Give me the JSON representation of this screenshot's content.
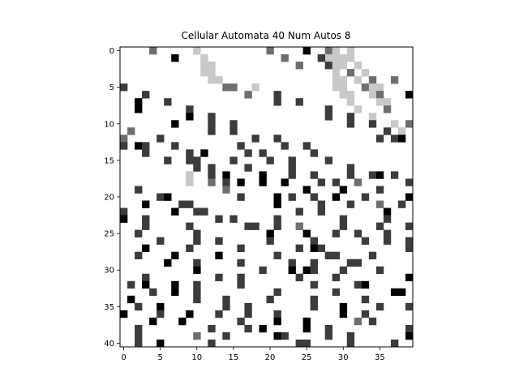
{
  "chart_data": {
    "type": "heatmap",
    "title": "Cellular Automata 40 Num Autos 8",
    "xlabel": "",
    "ylabel": "",
    "xlim": [
      -0.5,
      39.5
    ],
    "ylim": [
      40.5,
      -0.5
    ],
    "x_ticks": [
      0,
      5,
      10,
      15,
      20,
      25,
      30,
      35
    ],
    "y_ticks": [
      0,
      5,
      10,
      15,
      20,
      25,
      30,
      35,
      40
    ],
    "grid": false,
    "colormap": "gray_r",
    "colors": {
      "0": "#ffffff",
      "1": "#c8c8c8",
      "2": "#6e6e6e",
      "3": "#3c3c3c",
      "4": "#000000"
    },
    "rows": 41,
    "cols": 40,
    "cells": [
      [
        0,
        4,
        2
      ],
      [
        0,
        10,
        1
      ],
      [
        0,
        20,
        2
      ],
      [
        0,
        25,
        4
      ],
      [
        0,
        28,
        2
      ],
      [
        0,
        29,
        1
      ],
      [
        0,
        31,
        1
      ],
      [
        1,
        11,
        1
      ],
      [
        1,
        28,
        1
      ],
      [
        1,
        29,
        1
      ],
      [
        1,
        31,
        1
      ],
      [
        1,
        7,
        4
      ],
      [
        1,
        22,
        2
      ],
      [
        1,
        27,
        3
      ],
      [
        1,
        30,
        1
      ],
      [
        2,
        11,
        1
      ],
      [
        2,
        12,
        1
      ],
      [
        2,
        24,
        2
      ],
      [
        2,
        28,
        3
      ],
      [
        2,
        29,
        1
      ],
      [
        2,
        30,
        1
      ],
      [
        2,
        32,
        1
      ],
      [
        3,
        11,
        1
      ],
      [
        3,
        12,
        1
      ],
      [
        3,
        29,
        1
      ],
      [
        3,
        31,
        2
      ],
      [
        3,
        33,
        1
      ],
      [
        4,
        12,
        1
      ],
      [
        4,
        13,
        1
      ],
      [
        4,
        29,
        1
      ],
      [
        4,
        30,
        1
      ],
      [
        4,
        32,
        1
      ],
      [
        4,
        34,
        2
      ],
      [
        4,
        37,
        2
      ],
      [
        5,
        0,
        3
      ],
      [
        5,
        14,
        2
      ],
      [
        5,
        15,
        2
      ],
      [
        5,
        18,
        1
      ],
      [
        5,
        29,
        1
      ],
      [
        5,
        30,
        1
      ],
      [
        5,
        33,
        2
      ],
      [
        5,
        34,
        1
      ],
      [
        5,
        35,
        1
      ],
      [
        6,
        3,
        3
      ],
      [
        6,
        17,
        2
      ],
      [
        6,
        21,
        3
      ],
      [
        6,
        30,
        1
      ],
      [
        6,
        31,
        1
      ],
      [
        6,
        34,
        1
      ],
      [
        6,
        35,
        2
      ],
      [
        6,
        39,
        4
      ],
      [
        7,
        2,
        4
      ],
      [
        7,
        6,
        3
      ],
      [
        7,
        21,
        3
      ],
      [
        7,
        24,
        3
      ],
      [
        7,
        31,
        1
      ],
      [
        7,
        35,
        1
      ],
      [
        7,
        36,
        1
      ],
      [
        8,
        2,
        4
      ],
      [
        8,
        9,
        3
      ],
      [
        8,
        28,
        3
      ],
      [
        8,
        32,
        1
      ],
      [
        8,
        36,
        2
      ],
      [
        9,
        9,
        4
      ],
      [
        9,
        12,
        3
      ],
      [
        9,
        28,
        3
      ],
      [
        9,
        31,
        3
      ],
      [
        9,
        34,
        1
      ],
      [
        10,
        7,
        4
      ],
      [
        10,
        12,
        3
      ],
      [
        10,
        15,
        3
      ],
      [
        10,
        31,
        3
      ],
      [
        10,
        34,
        3
      ],
      [
        10,
        37,
        1
      ],
      [
        10,
        39,
        2
      ],
      [
        11,
        1,
        2
      ],
      [
        11,
        12,
        3
      ],
      [
        11,
        15,
        3
      ],
      [
        11,
        36,
        3
      ],
      [
        11,
        38,
        1
      ],
      [
        12,
        0,
        2
      ],
      [
        12,
        5,
        3
      ],
      [
        12,
        18,
        3
      ],
      [
        12,
        21,
        3
      ],
      [
        12,
        35,
        3
      ],
      [
        12,
        37,
        3
      ],
      [
        12,
        38,
        4
      ],
      [
        13,
        0,
        3
      ],
      [
        13,
        2,
        4
      ],
      [
        13,
        3,
        3
      ],
      [
        13,
        7,
        3
      ],
      [
        13,
        16,
        3
      ],
      [
        13,
        22,
        3
      ],
      [
        13,
        25,
        3
      ],
      [
        14,
        3,
        3
      ],
      [
        14,
        9,
        3
      ],
      [
        14,
        11,
        4
      ],
      [
        14,
        17,
        3
      ],
      [
        14,
        19,
        3
      ],
      [
        14,
        26,
        3
      ],
      [
        15,
        6,
        3
      ],
      [
        15,
        9,
        3
      ],
      [
        15,
        10,
        3
      ],
      [
        15,
        15,
        3
      ],
      [
        15,
        20,
        3
      ],
      [
        15,
        23,
        3
      ],
      [
        15,
        28,
        3
      ],
      [
        16,
        10,
        3
      ],
      [
        16,
        12,
        3
      ],
      [
        16,
        17,
        3
      ],
      [
        16,
        23,
        3
      ],
      [
        16,
        31,
        3
      ],
      [
        17,
        9,
        1
      ],
      [
        17,
        12,
        3
      ],
      [
        17,
        14,
        4
      ],
      [
        17,
        19,
        4
      ],
      [
        17,
        23,
        3
      ],
      [
        17,
        26,
        3
      ],
      [
        17,
        31,
        3
      ],
      [
        17,
        34,
        3
      ],
      [
        17,
        35,
        4
      ],
      [
        17,
        37,
        3
      ],
      [
        18,
        9,
        1
      ],
      [
        18,
        12,
        2
      ],
      [
        18,
        14,
        3
      ],
      [
        18,
        16,
        4
      ],
      [
        18,
        19,
        4
      ],
      [
        18,
        22,
        4
      ],
      [
        18,
        27,
        3
      ],
      [
        18,
        29,
        3
      ],
      [
        18,
        32,
        2
      ],
      [
        18,
        39,
        3
      ],
      [
        19,
        2,
        3
      ],
      [
        19,
        14,
        2
      ],
      [
        19,
        25,
        4
      ],
      [
        19,
        30,
        4
      ],
      [
        19,
        35,
        3
      ],
      [
        20,
        5,
        3
      ],
      [
        20,
        6,
        4
      ],
      [
        20,
        16,
        3
      ],
      [
        20,
        21,
        4
      ],
      [
        20,
        23,
        3
      ],
      [
        20,
        26,
        3
      ],
      [
        20,
        29,
        4
      ],
      [
        20,
        33,
        3
      ],
      [
        20,
        39,
        4
      ],
      [
        21,
        3,
        4
      ],
      [
        21,
        8,
        3
      ],
      [
        21,
        9,
        3
      ],
      [
        21,
        21,
        4
      ],
      [
        21,
        27,
        3
      ],
      [
        21,
        31,
        3
      ],
      [
        21,
        35,
        2
      ],
      [
        21,
        38,
        3
      ],
      [
        22,
        0,
        3
      ],
      [
        22,
        7,
        4
      ],
      [
        22,
        10,
        3
      ],
      [
        22,
        11,
        3
      ],
      [
        22,
        24,
        3
      ],
      [
        22,
        27,
        3
      ],
      [
        22,
        36,
        4
      ],
      [
        23,
        0,
        4
      ],
      [
        23,
        3,
        3
      ],
      [
        23,
        13,
        3
      ],
      [
        23,
        15,
        3
      ],
      [
        23,
        21,
        3
      ],
      [
        23,
        30,
        3
      ],
      [
        23,
        36,
        3
      ],
      [
        24,
        3,
        3
      ],
      [
        24,
        9,
        3
      ],
      [
        24,
        17,
        3
      ],
      [
        24,
        18,
        3
      ],
      [
        24,
        21,
        3
      ],
      [
        24,
        24,
        2
      ],
      [
        24,
        30,
        3
      ],
      [
        24,
        35,
        3
      ],
      [
        24,
        39,
        3
      ],
      [
        25,
        2,
        3
      ],
      [
        25,
        10,
        3
      ],
      [
        25,
        20,
        4
      ],
      [
        25,
        25,
        4
      ],
      [
        25,
        29,
        3
      ],
      [
        25,
        32,
        3
      ],
      [
        25,
        36,
        3
      ],
      [
        26,
        5,
        3
      ],
      [
        26,
        10,
        3
      ],
      [
        26,
        13,
        3
      ],
      [
        26,
        20,
        3
      ],
      [
        26,
        26,
        3
      ],
      [
        26,
        33,
        3
      ],
      [
        26,
        36,
        3
      ],
      [
        26,
        39,
        3
      ],
      [
        27,
        3,
        4
      ],
      [
        27,
        9,
        3
      ],
      [
        27,
        16,
        3
      ],
      [
        27,
        24,
        3
      ],
      [
        27,
        26,
        4
      ],
      [
        27,
        27,
        3
      ],
      [
        27,
        39,
        3
      ],
      [
        28,
        2,
        3
      ],
      [
        28,
        7,
        4
      ],
      [
        28,
        13,
        4
      ],
      [
        28,
        21,
        3
      ],
      [
        28,
        28,
        3
      ],
      [
        28,
        29,
        3
      ],
      [
        28,
        34,
        3
      ],
      [
        29,
        6,
        4
      ],
      [
        29,
        10,
        3
      ],
      [
        29,
        16,
        3
      ],
      [
        29,
        23,
        3
      ],
      [
        29,
        26,
        3
      ],
      [
        29,
        31,
        3
      ],
      [
        29,
        32,
        3
      ],
      [
        30,
        10,
        4
      ],
      [
        30,
        19,
        3
      ],
      [
        30,
        23,
        4
      ],
      [
        30,
        25,
        4
      ],
      [
        30,
        26,
        3
      ],
      [
        30,
        30,
        3
      ],
      [
        30,
        35,
        3
      ],
      [
        31,
        3,
        3
      ],
      [
        31,
        13,
        3
      ],
      [
        31,
        16,
        3
      ],
      [
        31,
        24,
        3
      ],
      [
        31,
        29,
        3
      ],
      [
        31,
        39,
        4
      ],
      [
        32,
        1,
        3
      ],
      [
        32,
        3,
        4
      ],
      [
        32,
        7,
        4
      ],
      [
        32,
        10,
        3
      ],
      [
        32,
        16,
        3
      ],
      [
        32,
        26,
        3
      ],
      [
        32,
        32,
        3
      ],
      [
        32,
        33,
        4
      ],
      [
        33,
        4,
        3
      ],
      [
        33,
        7,
        4
      ],
      [
        33,
        10,
        3
      ],
      [
        33,
        21,
        3
      ],
      [
        33,
        29,
        3
      ],
      [
        33,
        37,
        4
      ],
      [
        33,
        38,
        4
      ],
      [
        34,
        1,
        4
      ],
      [
        34,
        10,
        3
      ],
      [
        34,
        14,
        3
      ],
      [
        34,
        20,
        3
      ],
      [
        34,
        26,
        3
      ],
      [
        34,
        33,
        3
      ],
      [
        35,
        2,
        3
      ],
      [
        35,
        5,
        4
      ],
      [
        35,
        14,
        3
      ],
      [
        35,
        17,
        3
      ],
      [
        35,
        26,
        3
      ],
      [
        35,
        30,
        4
      ],
      [
        35,
        35,
        3
      ],
      [
        35,
        39,
        3
      ],
      [
        36,
        0,
        4
      ],
      [
        36,
        5,
        3
      ],
      [
        36,
        9,
        4
      ],
      [
        36,
        13,
        3
      ],
      [
        36,
        17,
        3
      ],
      [
        36,
        21,
        3
      ],
      [
        36,
        30,
        4
      ],
      [
        36,
        33,
        3
      ],
      [
        37,
        4,
        4
      ],
      [
        37,
        8,
        4
      ],
      [
        37,
        16,
        3
      ],
      [
        37,
        21,
        4
      ],
      [
        37,
        25,
        4
      ],
      [
        37,
        32,
        2
      ],
      [
        37,
        34,
        3
      ],
      [
        38,
        2,
        3
      ],
      [
        38,
        12,
        3
      ],
      [
        38,
        17,
        3
      ],
      [
        38,
        19,
        4
      ],
      [
        38,
        25,
        4
      ],
      [
        38,
        28,
        3
      ],
      [
        38,
        39,
        3
      ],
      [
        39,
        2,
        3
      ],
      [
        39,
        10,
        2
      ],
      [
        39,
        14,
        3
      ],
      [
        39,
        21,
        4
      ],
      [
        39,
        22,
        3
      ],
      [
        39,
        28,
        3
      ],
      [
        39,
        31,
        3
      ],
      [
        39,
        39,
        4
      ],
      [
        40,
        2,
        3
      ],
      [
        40,
        5,
        4
      ],
      [
        40,
        12,
        3
      ],
      [
        40,
        24,
        3
      ],
      [
        40,
        25,
        3
      ],
      [
        40,
        31,
        3
      ],
      [
        40,
        37,
        3
      ]
    ]
  }
}
